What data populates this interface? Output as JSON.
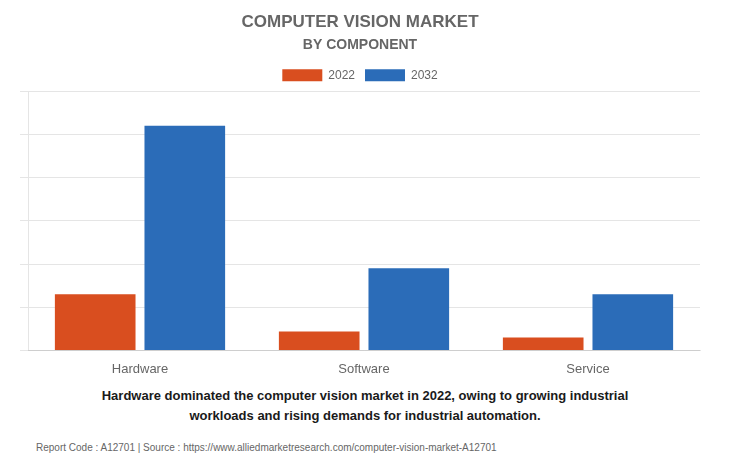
{
  "chart_data": {
    "type": "bar",
    "title": "COMPUTER VISION MARKET",
    "subtitle": "BY COMPONENT",
    "categories": [
      "Hardware",
      "Software",
      "Service"
    ],
    "series": [
      {
        "name": "2022",
        "color": "#d94e1f",
        "values": [
          6.5,
          2.2,
          1.5
        ]
      },
      {
        "name": "2032",
        "color": "#2b6cb8",
        "values": [
          26.0,
          9.5,
          6.5
        ]
      }
    ],
    "ylim": [
      0,
      30
    ],
    "yticks": [
      0,
      5,
      10,
      15,
      20,
      25,
      30
    ],
    "grid": true,
    "legend": "top",
    "tick_labels": "x",
    "annotations": [
      "Hardware dominated the computer vision market in 2022, owing to growing industrial\nworkloads and rising demands for industrial automation.",
      "Report Code : A12701  |  Source : https://www.alliedmarketresearch.com/computer-vision-market-A12701"
    ]
  }
}
